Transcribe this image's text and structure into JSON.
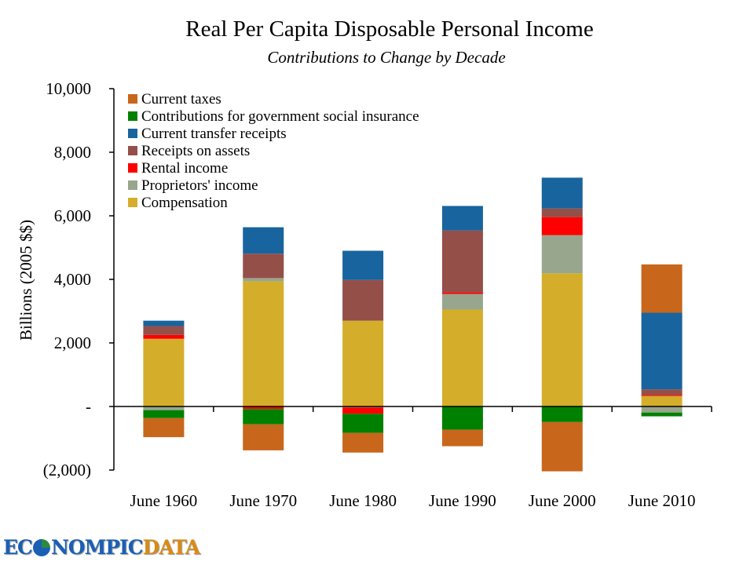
{
  "chart_data": {
    "type": "bar",
    "stacked": true,
    "title": "Real Per Capita Disposable Personal Income",
    "subtitle": "Contributions to Change by Decade",
    "xlabel": "",
    "ylabel": "Billions (2005 $$)",
    "ylim": [
      -2000,
      10000
    ],
    "yticks": [
      10000,
      8000,
      6000,
      4000,
      2000,
      0,
      -2000
    ],
    "ytick_labels": [
      "10,000",
      "8,000",
      "6,000",
      "4,000",
      "2,000",
      "-",
      "(2,000)"
    ],
    "grid": false,
    "legend_position": "top-left",
    "categories": [
      "June 1960",
      "June 1970",
      "June 1980",
      "June 1990",
      "June 2000",
      "June 2010"
    ],
    "series": [
      {
        "name": "Current taxes",
        "color": "#c8661b",
        "values": [
          -600,
          -820,
          -620,
          -520,
          -1550,
          1520
        ]
      },
      {
        "name": "Contributions for government social insurance",
        "color": "#008000",
        "values": [
          -250,
          -480,
          -600,
          -730,
          -490,
          -120
        ]
      },
      {
        "name": "Current transfer receipts",
        "color": "#18649e",
        "values": [
          170,
          830,
          920,
          770,
          970,
          2410
        ]
      },
      {
        "name": "Receipts on assets",
        "color": "#944f49",
        "values": [
          280,
          770,
          1280,
          1950,
          270,
          180
        ]
      },
      {
        "name": "Rental income",
        "color": "#ff0000",
        "values": [
          120,
          -80,
          -200,
          50,
          570,
          30
        ]
      },
      {
        "name": "Proprietors' income",
        "color": "#97a68d",
        "values": [
          -115,
          100,
          -30,
          490,
          1200,
          -190
        ]
      },
      {
        "name": "Compensation",
        "color": "#d4ae2a",
        "values": [
          2130,
          3940,
          2700,
          3050,
          4190,
          330
        ]
      }
    ]
  },
  "logo": {
    "part1": "EC",
    "part2": "NOMPIC",
    "part3": "DATA"
  }
}
